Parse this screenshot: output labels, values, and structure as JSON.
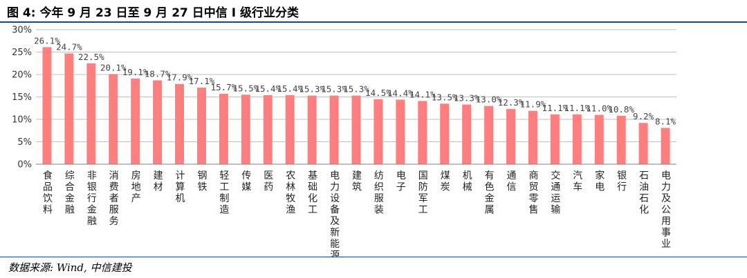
{
  "figure": {
    "title": "图 4: 今年 9 月 23 日至 9 月 27 日中信 I 级行业分类",
    "source": "数据来源: Wind, 中信建投"
  },
  "colors": {
    "bar": "#ff7f7f",
    "title_rule": "#1e3f8f",
    "grid": "#bfbfbf",
    "axis": "#7f7f7f"
  },
  "chart_data": {
    "type": "bar",
    "title": "",
    "xlabel": "",
    "ylabel": "",
    "ylim": [
      0,
      30
    ],
    "y_ticks": [
      "0%",
      "5%",
      "10%",
      "15%",
      "20%",
      "25%",
      "30%"
    ],
    "grid": true,
    "legend": "none",
    "categories": [
      "食品饮料",
      "综合金融",
      "非银行金融",
      "消费者服务",
      "房地产",
      "建材",
      "计算机",
      "钢铁",
      "轻工制造",
      "传媒",
      "医药",
      "农林牧渔",
      "基础化工",
      "电力设备及新能源",
      "建筑",
      "纺织服装",
      "电子",
      "国防军工",
      "煤炭",
      "机械",
      "有色金属",
      "通信",
      "商贸零售",
      "交通运输",
      "汽车",
      "家电",
      "银行",
      "石油石化",
      "电力及公用事业"
    ],
    "values": [
      26.1,
      24.7,
      22.5,
      20.1,
      19.1,
      18.7,
      17.9,
      17.1,
      15.7,
      15.5,
      15.4,
      15.4,
      15.3,
      15.3,
      15.3,
      14.5,
      14.4,
      14.1,
      13.5,
      13.3,
      13.0,
      12.3,
      11.9,
      11.1,
      11.1,
      11.0,
      10.8,
      9.2,
      8.1
    ],
    "data_labels": [
      "26.1%",
      "24.7%",
      "22.5%",
      "20.1%",
      "19.1%",
      "18.7%",
      "17.9%",
      "17.1%",
      "15.7%",
      "15.5%",
      "15.4%",
      "15.4%",
      "15.3%",
      "15.3%",
      "15.3%",
      "14.5%",
      "14.4%",
      "14.1%",
      "13.5%",
      "13.3%",
      "13.0%",
      "12.3%",
      "11.9%",
      "11.1%",
      "11.1%",
      "11.0%",
      "10.8%",
      "9.2%",
      "8.1%"
    ]
  }
}
